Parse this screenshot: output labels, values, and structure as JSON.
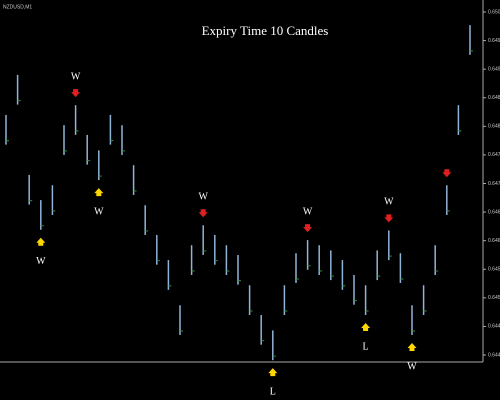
{
  "chart_data": {
    "type": "hlbar",
    "title": "Expiry Time 10 Candles",
    "symbol": "NZDUSD,M1",
    "color": "#8fb4d8",
    "high": [
      0.6482,
      0.6489,
      0.64715,
      0.64671,
      0.64697,
      0.64802,
      0.64837,
      0.64785,
      0.64758,
      0.6482,
      0.64802,
      0.64732,
      0.64662,
      0.6461,
      0.64566,
      0.64487,
      0.64592,
      0.64627,
      0.6461,
      0.64592,
      0.64575,
      0.64522,
      0.6447,
      0.64443,
      0.64522,
      0.64578,
      0.64601,
      0.64592,
      0.64583,
      0.64566,
      0.6454,
      0.64522,
      0.64583,
      0.64618,
      0.64578,
      0.64487,
      0.64522,
      0.64592,
      0.64697,
      0.64837,
      0.64977
    ],
    "low": [
      0.64768,
      0.64838,
      0.64663,
      0.64619,
      0.64645,
      0.6475,
      0.64785,
      0.64733,
      0.64706,
      0.64768,
      0.6475,
      0.6468,
      0.6461,
      0.64558,
      0.64514,
      0.64435,
      0.6454,
      0.64575,
      0.64558,
      0.6454,
      0.64523,
      0.6447,
      0.64418,
      0.64391,
      0.6447,
      0.64526,
      0.64549,
      0.6454,
      0.64531,
      0.64514,
      0.64488,
      0.6447,
      0.64531,
      0.64566,
      0.64526,
      0.64435,
      0.6447,
      0.6454,
      0.64645,
      0.64785,
      0.64925
    ],
    "ylim": [
      0.644,
      0.65
    ],
    "yticks": [
      {
        "value": 0.644,
        "label": "0.6440"
      },
      {
        "value": 0.6445,
        "label": "0.6445"
      },
      {
        "value": 0.645,
        "label": "0.6450"
      },
      {
        "value": 0.6455,
        "label": "0.6455"
      },
      {
        "value": 0.646,
        "label": "0.6460"
      },
      {
        "value": 0.6465,
        "label": "0.6465"
      },
      {
        "value": 0.647,
        "label": "0.6470"
      },
      {
        "value": 0.6475,
        "label": "0.6475"
      },
      {
        "value": 0.648,
        "label": "0.6480"
      },
      {
        "value": 0.6485,
        "label": "0.6485"
      },
      {
        "value": 0.649,
        "label": "0.6490"
      },
      {
        "value": 0.6495,
        "label": "0.6495"
      },
      {
        "value": 0.65,
        "label": "0.6500"
      }
    ],
    "signals": [
      {
        "index": 3,
        "direction": "up",
        "label": "W"
      },
      {
        "index": 6,
        "direction": "down",
        "label": "W"
      },
      {
        "index": 8,
        "direction": "up",
        "label": "W"
      },
      {
        "index": 17,
        "direction": "down",
        "label": "W"
      },
      {
        "index": 23,
        "direction": "up",
        "label": "L"
      },
      {
        "index": 26,
        "direction": "down",
        "label": "W"
      },
      {
        "index": 31,
        "direction": "up",
        "label": "L"
      },
      {
        "index": 33,
        "direction": "down",
        "label": "W"
      },
      {
        "index": 35,
        "direction": "up",
        "label": "W"
      },
      {
        "index": 38,
        "direction": "down"
      }
    ],
    "up_color": "#ffd700",
    "down_color": "#e02020"
  }
}
